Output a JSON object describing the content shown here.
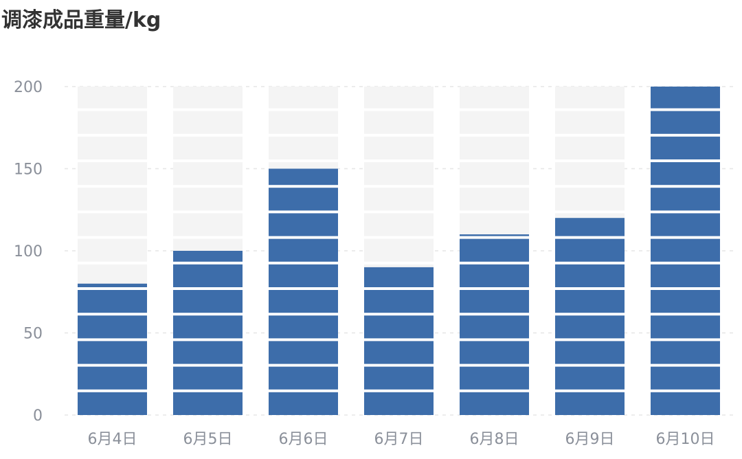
{
  "chart_data": {
    "type": "bar",
    "title": "调漆成品重量/kg",
    "categories": [
      "6月4日",
      "6月5日",
      "6月6日",
      "6月7日",
      "6月8日",
      "6月9日",
      "6月10日"
    ],
    "values": [
      80,
      100,
      150,
      90,
      110,
      120,
      200
    ],
    "ylim": [
      0,
      200
    ],
    "yticks": [
      0,
      50,
      100,
      150,
      200
    ],
    "grid": "dashed horizontal",
    "background_bars": true,
    "colors": {
      "bar": "#3d6daa",
      "background_bar": "#f4f4f4",
      "grid": "#e6e6e6",
      "tick_label": "#8a8f99"
    }
  }
}
